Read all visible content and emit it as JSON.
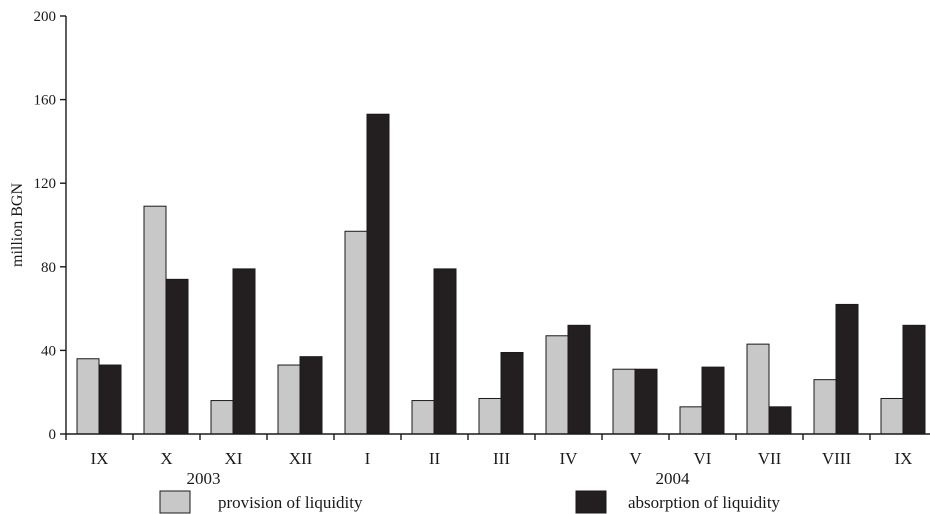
{
  "chart_data": {
    "type": "bar",
    "title": "",
    "ylabel": "million BGN",
    "xlabel": "",
    "ylim": [
      0,
      200
    ],
    "yticks": [
      0,
      40,
      80,
      120,
      160,
      200
    ],
    "categories": [
      "IX",
      "X",
      "XI",
      "XII",
      "I",
      "II",
      "III",
      "IV",
      "V",
      "VI",
      "VII",
      "VIII",
      "IX"
    ],
    "year_labels": [
      {
        "label": "2003",
        "category_index": 1
      },
      {
        "label": "2004",
        "category_index": 8
      }
    ],
    "series": [
      {
        "name": "provision of liquidity",
        "color": "#c8c8c8",
        "values": [
          36,
          109,
          16,
          33,
          97,
          16,
          17,
          47,
          31,
          13,
          43,
          26,
          17
        ]
      },
      {
        "name": "absorption of liquidity",
        "color": "#231f20",
        "values": [
          33,
          74,
          79,
          37,
          153,
          79,
          39,
          52,
          31,
          32,
          13,
          62,
          52
        ]
      }
    ],
    "grid": false,
    "legend": "bottom"
  }
}
